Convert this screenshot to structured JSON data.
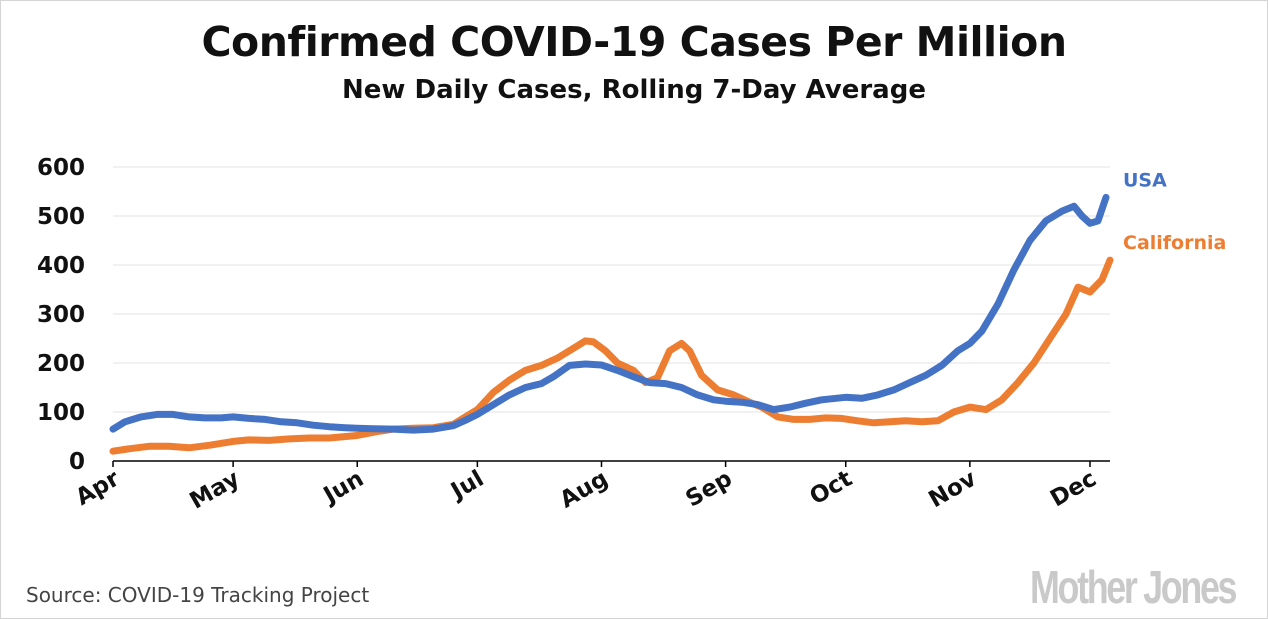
{
  "title": "Confirmed COVID-19 Cases Per Million",
  "subtitle": "New Daily Cases, Rolling 7-Day Average",
  "source": "Source: COVID-19 Tracking Project",
  "logo_text": "Mother Jones",
  "colors": {
    "usa": "#4472C4",
    "california": "#ED7D31",
    "grid": "#e3e3e3",
    "axis": "#000000"
  },
  "chart_data": {
    "type": "line",
    "title": "Confirmed COVID-19 Cases Per Million",
    "subtitle": "New Daily Cases, Rolling 7-Day Average",
    "xlabel": "",
    "ylabel": "",
    "ylim": [
      0,
      600
    ],
    "yticks": [
      "0",
      "100",
      "200",
      "300",
      "400",
      "500",
      "600"
    ],
    "xticks": [
      "Apr",
      "May",
      "Jun",
      "Jul",
      "Aug",
      "Sep",
      "Oct",
      "Nov",
      "Dec"
    ],
    "grid": true,
    "legend": "labels at line ends, right",
    "x_unit": "date (2020)",
    "series": [
      {
        "name": "USA",
        "color": "#4472C4",
        "points": [
          [
            "2020-04-01",
            65
          ],
          [
            "2020-04-04",
            80
          ],
          [
            "2020-04-08",
            90
          ],
          [
            "2020-04-12",
            95
          ],
          [
            "2020-04-16",
            95
          ],
          [
            "2020-04-20",
            90
          ],
          [
            "2020-04-24",
            88
          ],
          [
            "2020-04-28",
            88
          ],
          [
            "2020-05-01",
            90
          ],
          [
            "2020-05-05",
            87
          ],
          [
            "2020-05-09",
            85
          ],
          [
            "2020-05-13",
            80
          ],
          [
            "2020-05-17",
            78
          ],
          [
            "2020-05-21",
            73
          ],
          [
            "2020-05-25",
            70
          ],
          [
            "2020-05-29",
            68
          ],
          [
            "2020-06-01",
            67
          ],
          [
            "2020-06-05",
            66
          ],
          [
            "2020-06-10",
            65
          ],
          [
            "2020-06-15",
            63
          ],
          [
            "2020-06-20",
            65
          ],
          [
            "2020-06-25",
            72
          ],
          [
            "2020-06-28",
            83
          ],
          [
            "2020-07-01",
            95
          ],
          [
            "2020-07-05",
            115
          ],
          [
            "2020-07-09",
            135
          ],
          [
            "2020-07-13",
            150
          ],
          [
            "2020-07-17",
            158
          ],
          [
            "2020-07-20",
            172
          ],
          [
            "2020-07-24",
            195
          ],
          [
            "2020-07-28",
            198
          ],
          [
            "2020-08-01",
            196
          ],
          [
            "2020-08-05",
            185
          ],
          [
            "2020-08-09",
            172
          ],
          [
            "2020-08-13",
            160
          ],
          [
            "2020-08-17",
            158
          ],
          [
            "2020-08-21",
            150
          ],
          [
            "2020-08-25",
            135
          ],
          [
            "2020-08-29",
            125
          ],
          [
            "2020-09-01",
            122
          ],
          [
            "2020-09-05",
            120
          ],
          [
            "2020-09-09",
            115
          ],
          [
            "2020-09-13",
            105
          ],
          [
            "2020-09-17",
            110
          ],
          [
            "2020-09-21",
            118
          ],
          [
            "2020-09-25",
            125
          ],
          [
            "2020-10-01",
            130
          ],
          [
            "2020-10-05",
            128
          ],
          [
            "2020-10-09",
            135
          ],
          [
            "2020-10-13",
            145
          ],
          [
            "2020-10-17",
            160
          ],
          [
            "2020-10-21",
            175
          ],
          [
            "2020-10-25",
            195
          ],
          [
            "2020-10-29",
            225
          ],
          [
            "2020-11-01",
            240
          ],
          [
            "2020-11-04",
            265
          ],
          [
            "2020-11-08",
            320
          ],
          [
            "2020-11-12",
            390
          ],
          [
            "2020-11-16",
            450
          ],
          [
            "2020-11-20",
            490
          ],
          [
            "2020-11-24",
            510
          ],
          [
            "2020-11-27",
            520
          ],
          [
            "2020-11-29",
            500
          ],
          [
            "2020-12-01",
            485
          ],
          [
            "2020-12-03",
            490
          ],
          [
            "2020-12-05",
            538
          ]
        ]
      },
      {
        "name": "California",
        "color": "#ED7D31",
        "points": [
          [
            "2020-04-01",
            20
          ],
          [
            "2020-04-05",
            25
          ],
          [
            "2020-04-10",
            30
          ],
          [
            "2020-04-15",
            30
          ],
          [
            "2020-04-20",
            27
          ],
          [
            "2020-04-25",
            32
          ],
          [
            "2020-05-01",
            40
          ],
          [
            "2020-05-05",
            43
          ],
          [
            "2020-05-10",
            42
          ],
          [
            "2020-05-15",
            45
          ],
          [
            "2020-05-20",
            47
          ],
          [
            "2020-05-25",
            47
          ],
          [
            "2020-06-01",
            52
          ],
          [
            "2020-06-06",
            60
          ],
          [
            "2020-06-10",
            65
          ],
          [
            "2020-06-15",
            67
          ],
          [
            "2020-06-20",
            68
          ],
          [
            "2020-06-25",
            75
          ],
          [
            "2020-06-28",
            90
          ],
          [
            "2020-07-01",
            105
          ],
          [
            "2020-07-05",
            140
          ],
          [
            "2020-07-09",
            165
          ],
          [
            "2020-07-13",
            185
          ],
          [
            "2020-07-17",
            195
          ],
          [
            "2020-07-21",
            210
          ],
          [
            "2020-07-25",
            230
          ],
          [
            "2020-07-28",
            245
          ],
          [
            "2020-07-30",
            243
          ],
          [
            "2020-08-02",
            225
          ],
          [
            "2020-08-05",
            200
          ],
          [
            "2020-08-09",
            185
          ],
          [
            "2020-08-12",
            160
          ],
          [
            "2020-08-15",
            170
          ],
          [
            "2020-08-18",
            225
          ],
          [
            "2020-08-21",
            240
          ],
          [
            "2020-08-23",
            225
          ],
          [
            "2020-08-26",
            175
          ],
          [
            "2020-08-30",
            145
          ],
          [
            "2020-09-03",
            135
          ],
          [
            "2020-09-07",
            120
          ],
          [
            "2020-09-10",
            110
          ],
          [
            "2020-09-14",
            90
          ],
          [
            "2020-09-18",
            85
          ],
          [
            "2020-09-22",
            85
          ],
          [
            "2020-09-26",
            88
          ],
          [
            "2020-09-30",
            87
          ],
          [
            "2020-10-04",
            82
          ],
          [
            "2020-10-08",
            78
          ],
          [
            "2020-10-12",
            80
          ],
          [
            "2020-10-16",
            82
          ],
          [
            "2020-10-20",
            80
          ],
          [
            "2020-10-24",
            82
          ],
          [
            "2020-10-28",
            100
          ],
          [
            "2020-11-01",
            110
          ],
          [
            "2020-11-05",
            105
          ],
          [
            "2020-11-09",
            125
          ],
          [
            "2020-11-13",
            160
          ],
          [
            "2020-11-17",
            200
          ],
          [
            "2020-11-21",
            250
          ],
          [
            "2020-11-25",
            300
          ],
          [
            "2020-11-28",
            355
          ],
          [
            "2020-12-01",
            345
          ],
          [
            "2020-12-04",
            370
          ],
          [
            "2020-12-06",
            410
          ]
        ]
      }
    ]
  }
}
